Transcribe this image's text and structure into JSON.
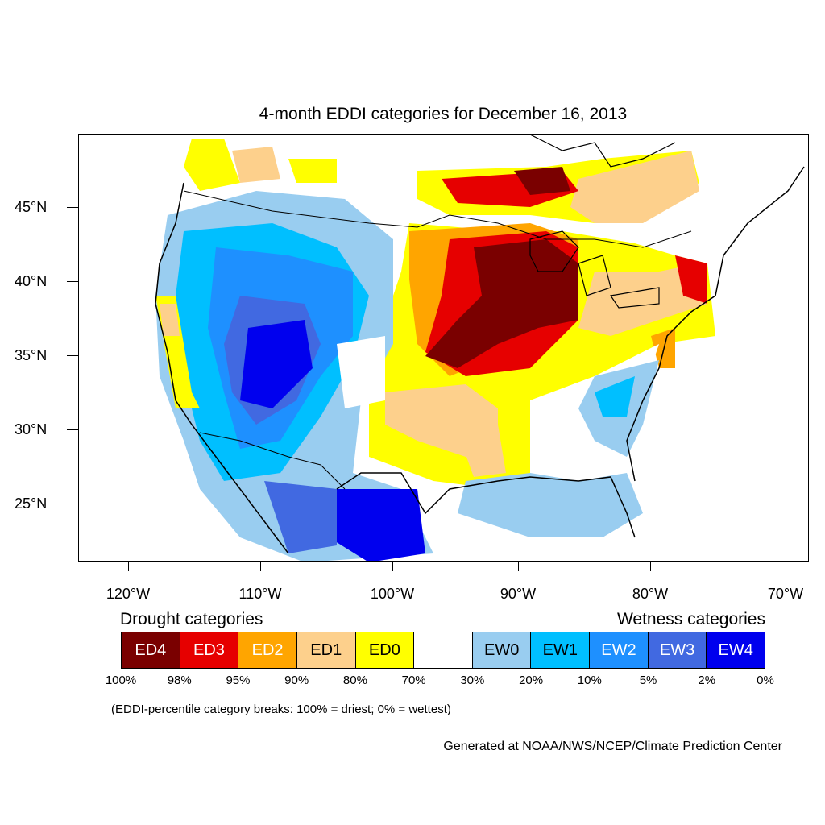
{
  "title": "4-month EDDI categories for December 16, 2013",
  "y_axis_labels": [
    "45°N",
    "40°N",
    "35°N",
    "30°N",
    "25°N"
  ],
  "x_axis_labels": [
    "120°W",
    "110°W",
    "100°W",
    "90°W",
    "80°W",
    "70°W"
  ],
  "legend": {
    "drought_title": "Drought categories",
    "wetness_title": "Wetness categories",
    "categories": [
      {
        "label": "ED4",
        "color": "#7a0000",
        "text_color": "#ffffff"
      },
      {
        "label": "ED3",
        "color": "#e60000",
        "text_color": "#ffffff"
      },
      {
        "label": "ED2",
        "color": "#ffa500",
        "text_color": "#ffffff"
      },
      {
        "label": "ED1",
        "color": "#fdd08c",
        "text_color": "#000000"
      },
      {
        "label": "ED0",
        "color": "#ffff00",
        "text_color": "#000000"
      },
      {
        "label": "",
        "color": "#ffffff",
        "text_color": "#000000"
      },
      {
        "label": "EW0",
        "color": "#99cdf0",
        "text_color": "#000000"
      },
      {
        "label": "EW1",
        "color": "#00bfff",
        "text_color": "#000000"
      },
      {
        "label": "EW2",
        "color": "#1e90ff",
        "text_color": "#ffffff"
      },
      {
        "label": "EW3",
        "color": "#4169e1",
        "text_color": "#ffffff"
      },
      {
        "label": "EW4",
        "color": "#0000ee",
        "text_color": "#ffffff"
      }
    ],
    "breaks": [
      "100%",
      "98%",
      "95%",
      "90%",
      "80%",
      "70%",
      "30%",
      "20%",
      "10%",
      "5%",
      "2%",
      "0%"
    ]
  },
  "note": "(EDDI-percentile category breaks: 100% = driest; 0% = wettest)",
  "credit": "Generated at NOAA/NWS/NCEP/Climate Prediction Center"
}
